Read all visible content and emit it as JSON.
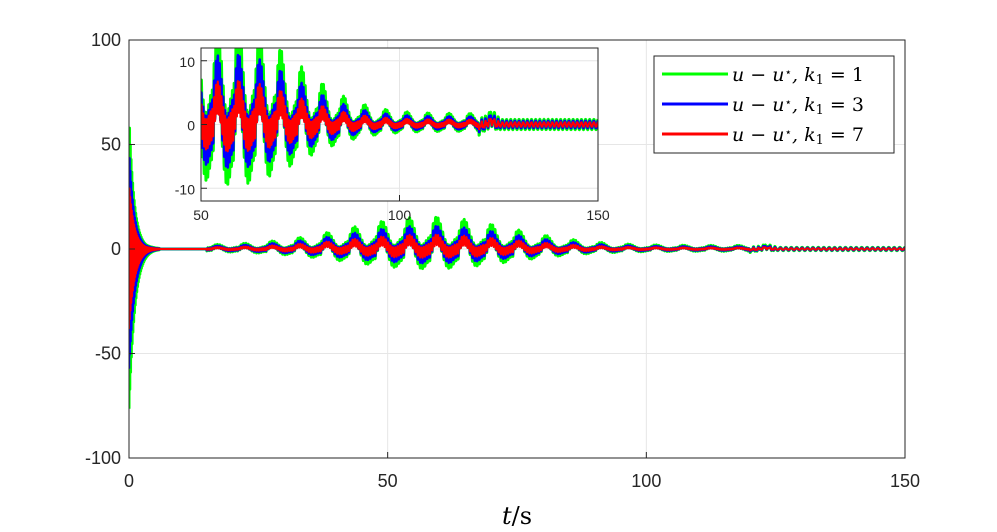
{
  "chart_data": [
    {
      "id": "main",
      "type": "line",
      "xlabel": "t/s",
      "ylabel": "",
      "xlim": [
        0,
        150
      ],
      "ylim": [
        -100,
        100
      ],
      "xticks": [
        0,
        50,
        100,
        150
      ],
      "xtick_labels": [
        "0",
        "50",
        "100",
        "150"
      ],
      "yticks": [
        -100,
        -50,
        0,
        50,
        100
      ],
      "ytick_labels": [
        "-100",
        "-50",
        "0",
        "50",
        "100"
      ],
      "grid": true,
      "series": [
        {
          "color": "#00ff00"
        },
        {
          "color": "#0000ff"
        },
        {
          "color": "#ff0000"
        }
      ]
    },
    {
      "id": "inset",
      "type": "line",
      "xlim": [
        50,
        150
      ],
      "ylim": [
        -12,
        12
      ],
      "xticks": [
        50,
        100,
        150
      ],
      "xtick_labels": [
        "50",
        "100",
        "150"
      ],
      "yticks": [
        -10,
        0,
        10
      ],
      "ytick_labels": [
        "-10",
        "0",
        "10"
      ],
      "grid": true,
      "legend": {
        "placement": "top-right",
        "entries": [
          {
            "series": "u − u*, k1 = 1",
            "color": "#00ff00",
            "k": "1"
          },
          {
            "series": "u − u*, k1 = 3",
            "color": "#0000ff",
            "k": "3"
          },
          {
            "series": "u − u*, k1 = 7",
            "color": "#ff0000",
            "k": "7"
          }
        ]
      }
    }
  ],
  "text": {
    "xlabel_var": "t",
    "xlabel_unit": "/s",
    "legend_prefix": "u − u",
    "legend_star": "⋆",
    "legend_k": ", k",
    "legend_sub": "1",
    "legend_eq": " = "
  }
}
